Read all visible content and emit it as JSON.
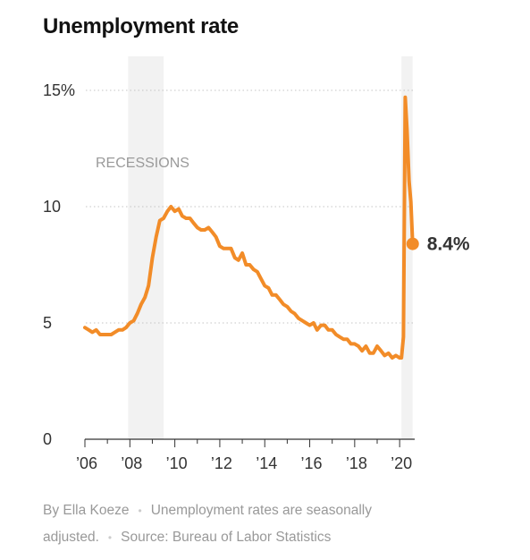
{
  "chart_data": {
    "type": "line",
    "title": "Unemployment rate",
    "ylim": [
      0,
      15
    ],
    "xlim": [
      2006.0,
      2020.67
    ],
    "y_ticks": [
      {
        "value": 0,
        "label": "0"
      },
      {
        "value": 5,
        "label": "5"
      },
      {
        "value": 10,
        "label": "10"
      },
      {
        "value": 15,
        "label": "15%"
      }
    ],
    "x_ticks": [
      {
        "value": 2006,
        "label": "’06"
      },
      {
        "value": 2008,
        "label": "’08"
      },
      {
        "value": 2010,
        "label": "’10"
      },
      {
        "value": 2012,
        "label": "’12"
      },
      {
        "value": 2014,
        "label": "’14"
      },
      {
        "value": 2016,
        "label": "’16"
      },
      {
        "value": 2018,
        "label": "’18"
      },
      {
        "value": 2020,
        "label": "’20"
      }
    ],
    "grid": "horizontal dotted",
    "recessions": [
      {
        "start": 2007.92,
        "end": 2009.5
      },
      {
        "start": 2020.08,
        "end": 2020.58
      }
    ],
    "recessions_label": "RECESSIONS",
    "end_label": "8.4%",
    "line_color": "#f28c28",
    "recession_color": "#f2f2f2",
    "series": [
      {
        "x": [
          2006.0,
          2006.17,
          2006.33,
          2006.5,
          2006.67,
          2006.83,
          2007.0,
          2007.17,
          2007.33,
          2007.5,
          2007.67,
          2007.83,
          2008.0,
          2008.17,
          2008.33,
          2008.5,
          2008.67,
          2008.83,
          2009.0,
          2009.17,
          2009.33,
          2009.5,
          2009.67,
          2009.83,
          2010.0,
          2010.17,
          2010.33,
          2010.5,
          2010.67,
          2010.83,
          2011.0,
          2011.17,
          2011.33,
          2011.5,
          2011.67,
          2011.83,
          2012.0,
          2012.17,
          2012.33,
          2012.5,
          2012.67,
          2012.83,
          2013.0,
          2013.17,
          2013.33,
          2013.5,
          2013.67,
          2013.83,
          2014.0,
          2014.17,
          2014.33,
          2014.5,
          2014.67,
          2014.83,
          2015.0,
          2015.17,
          2015.33,
          2015.5,
          2015.67,
          2015.83,
          2016.0,
          2016.17,
          2016.33,
          2016.5,
          2016.67,
          2016.83,
          2017.0,
          2017.17,
          2017.33,
          2017.5,
          2017.67,
          2017.83,
          2018.0,
          2018.17,
          2018.33,
          2018.5,
          2018.67,
          2018.83,
          2019.0,
          2019.17,
          2019.33,
          2019.5,
          2019.67,
          2019.83,
          2020.0,
          2020.08,
          2020.17,
          2020.25,
          2020.33,
          2020.42,
          2020.5,
          2020.58
        ],
        "y": [
          4.8,
          4.7,
          4.6,
          4.7,
          4.5,
          4.5,
          4.5,
          4.5,
          4.6,
          4.7,
          4.7,
          4.8,
          5.0,
          5.1,
          5.4,
          5.8,
          6.1,
          6.6,
          7.8,
          8.7,
          9.4,
          9.5,
          9.8,
          10.0,
          9.8,
          9.9,
          9.6,
          9.5,
          9.5,
          9.3,
          9.1,
          9.0,
          9.0,
          9.1,
          8.9,
          8.7,
          8.3,
          8.2,
          8.2,
          8.2,
          7.8,
          7.7,
          8.0,
          7.5,
          7.5,
          7.3,
          7.2,
          6.9,
          6.6,
          6.5,
          6.2,
          6.2,
          6.0,
          5.8,
          5.7,
          5.5,
          5.4,
          5.2,
          5.1,
          5.0,
          4.9,
          5.0,
          4.7,
          4.9,
          4.9,
          4.7,
          4.7,
          4.5,
          4.4,
          4.3,
          4.3,
          4.1,
          4.1,
          4.0,
          3.8,
          4.0,
          3.7,
          3.7,
          4.0,
          3.8,
          3.6,
          3.7,
          3.5,
          3.6,
          3.5,
          3.5,
          4.4,
          14.7,
          13.3,
          11.1,
          10.2,
          8.4
        ]
      }
    ]
  },
  "footer": {
    "byline": "By Ella Koeze",
    "note": "Unemployment rates are seasonally adjusted.",
    "source": "Source: Bureau of Labor Statistics"
  }
}
